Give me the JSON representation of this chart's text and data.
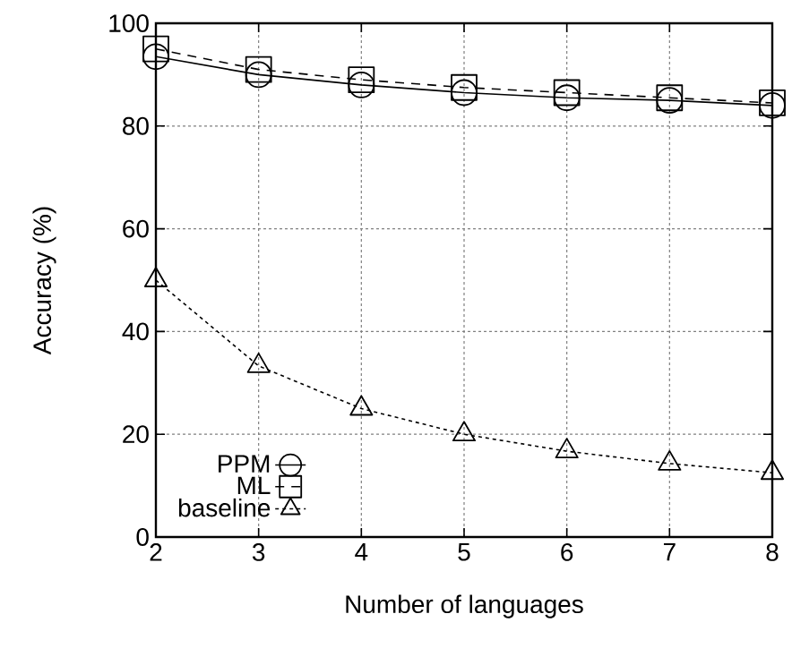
{
  "chart_data": {
    "type": "line",
    "xlabel": "Number of languages",
    "ylabel": "Accuracy (%)",
    "x": [
      2,
      3,
      4,
      5,
      6,
      7,
      8
    ],
    "series": [
      {
        "name": "PPM",
        "color": "#000000",
        "marker": "circle",
        "line_style": "solid",
        "values": [
          93.5,
          90,
          88,
          86.5,
          85.5,
          85,
          84
        ]
      },
      {
        "name": "ML",
        "color": "#000000",
        "marker": "square",
        "line_style": "dashed",
        "values": [
          95,
          91,
          89,
          87.5,
          86.5,
          85.5,
          84.5
        ]
      },
      {
        "name": "baseline",
        "color": "#000000",
        "marker": "triangle",
        "line_style": "dotted",
        "values": [
          50,
          33.3,
          25,
          20,
          16.7,
          14.3,
          12.5
        ]
      }
    ],
    "xlim": [
      2,
      8
    ],
    "xticks": [
      2,
      3,
      4,
      5,
      6,
      7,
      8
    ],
    "ylim": [
      0,
      100
    ],
    "yticks": [
      0,
      20,
      40,
      60,
      80,
      100
    ],
    "grid": true,
    "legend": "bottom left"
  }
}
